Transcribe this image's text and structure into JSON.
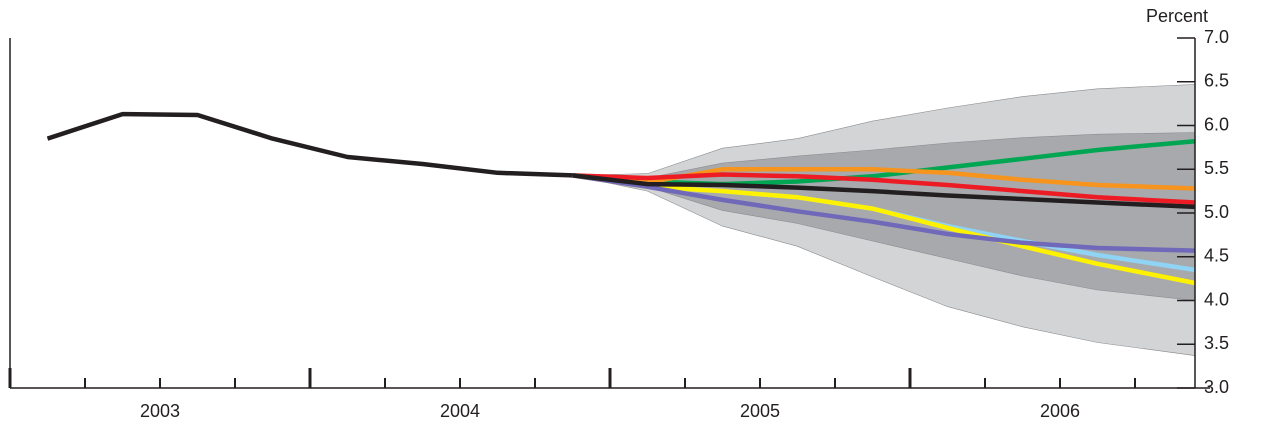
{
  "chart_data": {
    "type": "line",
    "ylabel": "Percent",
    "xlim": [
      2003,
      2006.95
    ],
    "ylim": [
      3,
      7
    ],
    "yticks": [
      {
        "value": 3,
        "label": "3.0"
      },
      {
        "value": 3.5,
        "label": "3.5"
      },
      {
        "value": 4,
        "label": "4.0"
      },
      {
        "value": 4.5,
        "label": "4.5"
      },
      {
        "value": 5,
        "label": "5.0"
      },
      {
        "value": 5.5,
        "label": "5.5"
      },
      {
        "value": 6,
        "label": "6.0"
      },
      {
        "value": 6.5,
        "label": "6.5"
      },
      {
        "value": 7,
        "label": "7.0"
      }
    ],
    "xticks": [
      2003,
      2004,
      2005,
      2006
    ],
    "xtick_labels": [
      {
        "value": 2003.5,
        "label": "2003"
      },
      {
        "value": 2004.5,
        "label": "2004"
      },
      {
        "value": 2005.5,
        "label": "2005"
      },
      {
        "value": 2006.5,
        "label": "2006"
      }
    ],
    "bands": [
      {
        "color": "#d3d4d6",
        "x": [
          2004.875,
          2005.125,
          2005.375,
          2005.625,
          2005.875,
          2006.125,
          2006.375,
          2006.625,
          2006.95
        ],
        "upper": [
          5.43,
          5.45,
          5.74,
          5.85,
          6.05,
          6.2,
          6.33,
          6.42,
          6.47
        ],
        "lower": [
          5.43,
          5.25,
          4.85,
          4.62,
          4.27,
          3.93,
          3.7,
          3.52,
          3.37
        ]
      },
      {
        "color": "#a7a9ac",
        "x": [
          2004.875,
          2005.125,
          2005.375,
          2005.625,
          2005.875,
          2006.125,
          2006.375,
          2006.625,
          2006.95
        ],
        "upper": [
          5.43,
          5.4,
          5.57,
          5.65,
          5.72,
          5.8,
          5.86,
          5.9,
          5.92
        ],
        "lower": [
          5.43,
          5.3,
          5.03,
          4.88,
          4.68,
          4.48,
          4.28,
          4.12,
          4.0
        ]
      }
    ],
    "series": [
      {
        "color": "#231f20",
        "x": [
          2003.125,
          2003.375,
          2003.625,
          2003.875,
          2004.125,
          2004.375,
          2004.625,
          2004.875
        ],
        "values": [
          5.85,
          6.13,
          6.12,
          5.85,
          5.64,
          5.56,
          5.46,
          5.43
        ]
      },
      {
        "color": "#00a651",
        "x": [
          2004.875,
          2005.125,
          2005.375,
          2005.625,
          2005.875,
          2006.125,
          2006.375,
          2006.625,
          2006.95
        ],
        "values": [
          5.43,
          5.36,
          5.33,
          5.36,
          5.42,
          5.52,
          5.62,
          5.72,
          5.82
        ]
      },
      {
        "color": "#f7941d",
        "x": [
          2004.875,
          2005.125,
          2005.375,
          2005.625,
          2005.875,
          2006.125,
          2006.375,
          2006.625,
          2006.95
        ],
        "values": [
          5.43,
          5.35,
          5.5,
          5.5,
          5.5,
          5.46,
          5.38,
          5.32,
          5.28
        ]
      },
      {
        "color": "#ed1c24",
        "x": [
          2004.875,
          2005.125,
          2005.375,
          2005.625,
          2005.875,
          2006.125,
          2006.375,
          2006.625,
          2006.95
        ],
        "values": [
          5.43,
          5.4,
          5.44,
          5.42,
          5.38,
          5.32,
          5.25,
          5.18,
          5.12
        ]
      },
      {
        "color": "#8fd3f5",
        "x": [
          2004.875,
          2005.125,
          2005.375,
          2005.625,
          2005.875,
          2006.125,
          2006.375,
          2006.625,
          2006.95
        ],
        "values": [
          5.43,
          5.3,
          5.25,
          5.18,
          5.05,
          4.85,
          4.68,
          4.52,
          4.35
        ]
      },
      {
        "color": "#fff200",
        "x": [
          2004.875,
          2005.125,
          2005.375,
          2005.625,
          2005.875,
          2006.125,
          2006.375,
          2006.625,
          2006.95
        ],
        "values": [
          5.43,
          5.3,
          5.25,
          5.18,
          5.05,
          4.83,
          4.62,
          4.42,
          4.2
        ]
      },
      {
        "color": "#7068b8",
        "x": [
          2004.875,
          2005.125,
          2005.375,
          2005.625,
          2005.875,
          2006.125,
          2006.375,
          2006.625,
          2006.95
        ],
        "values": [
          5.43,
          5.3,
          5.15,
          5.02,
          4.9,
          4.76,
          4.66,
          4.6,
          4.57
        ]
      },
      {
        "color": "#231f20",
        "x": [
          2004.875,
          2005.125,
          2005.375,
          2005.625,
          2005.875,
          2006.125,
          2006.375,
          2006.625,
          2006.95
        ],
        "values": [
          5.43,
          5.33,
          5.32,
          5.29,
          5.25,
          5.2,
          5.16,
          5.12,
          5.07
        ]
      }
    ]
  }
}
